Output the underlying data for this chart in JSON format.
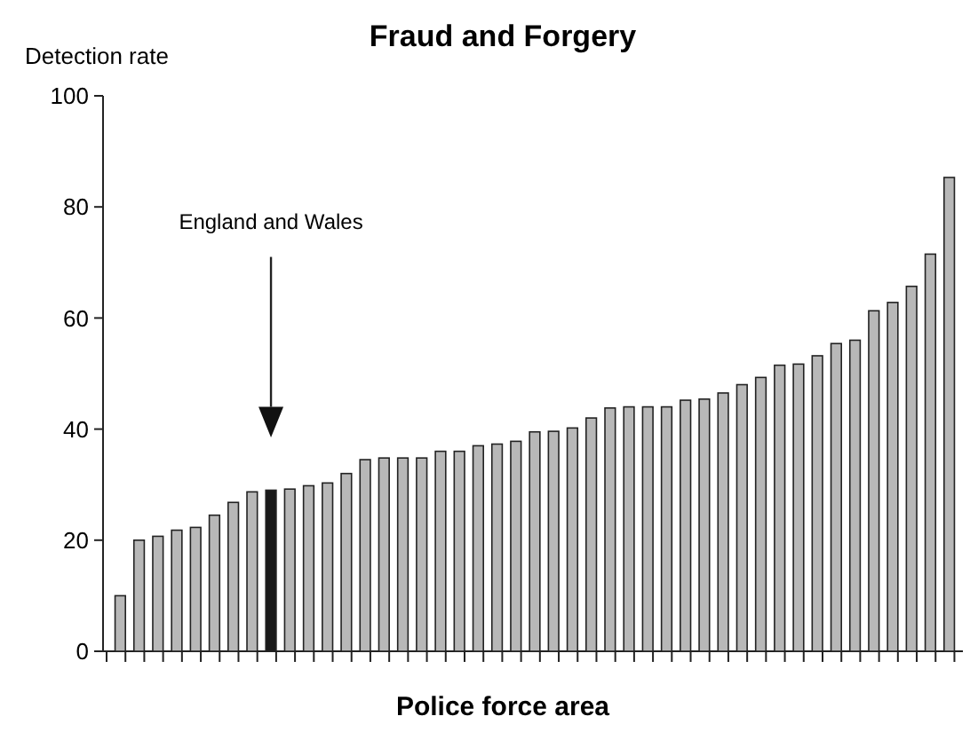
{
  "chart_data": {
    "type": "bar",
    "title": "Fraud and Forgery",
    "xlabel": "Police force area",
    "ylabel": "Detection rate",
    "categories": [
      null,
      null,
      null,
      null,
      null,
      null,
      null,
      null,
      null,
      null,
      null,
      null,
      null,
      null,
      null,
      null,
      null,
      null,
      null,
      null,
      null,
      null,
      null,
      null,
      null,
      null,
      null,
      null,
      null,
      null,
      null,
      null,
      null,
      null,
      null,
      null,
      null,
      null,
      null,
      null,
      null,
      null,
      null,
      null,
      null
    ],
    "values": [
      10,
      20,
      20.7,
      21.8,
      22.3,
      24.5,
      26.8,
      28.7,
      29,
      29.2,
      29.8,
      30.3,
      32,
      34.5,
      34.8,
      34.8,
      34.8,
      36,
      36,
      37,
      37.3,
      37.8,
      39.5,
      39.6,
      40.2,
      42,
      43.8,
      44,
      44,
      44,
      45.2,
      45.4,
      46.5,
      48,
      49.3,
      51.5,
      51.7,
      53.2,
      55.4,
      56,
      61.3,
      62.8,
      65.7,
      71.5,
      85.3
    ],
    "colors": [
      "#b8b8b8",
      "#b8b8b8",
      "#b8b8b8",
      "#b8b8b8",
      "#b8b8b8",
      "#b8b8b8",
      "#b8b8b8",
      "#b8b8b8",
      "#1a1a1a",
      "#b8b8b8",
      "#b8b8b8",
      "#b8b8b8",
      "#b8b8b8",
      "#b8b8b8",
      "#b8b8b8",
      "#b8b8b8",
      "#b8b8b8",
      "#b8b8b8",
      "#b8b8b8",
      "#b8b8b8",
      "#b8b8b8",
      "#b8b8b8",
      "#b8b8b8",
      "#b8b8b8",
      "#b8b8b8",
      "#b8b8b8",
      "#b8b8b8",
      "#b8b8b8",
      "#b8b8b8",
      "#b8b8b8",
      "#b8b8b8",
      "#b8b8b8",
      "#b8b8b8",
      "#b8b8b8",
      "#b8b8b8",
      "#b8b8b8",
      "#b8b8b8",
      "#b8b8b8",
      "#b8b8b8",
      "#b8b8b8",
      "#b8b8b8",
      "#b8b8b8",
      "#b8b8b8",
      "#b8b8b8",
      "#b8b8b8"
    ],
    "ylim": [
      0,
      100
    ],
    "yticks": [
      0,
      20,
      40,
      60,
      80,
      100
    ],
    "grid": false,
    "tick_labels": "y",
    "annotations": [
      "England and Wales"
    ]
  }
}
